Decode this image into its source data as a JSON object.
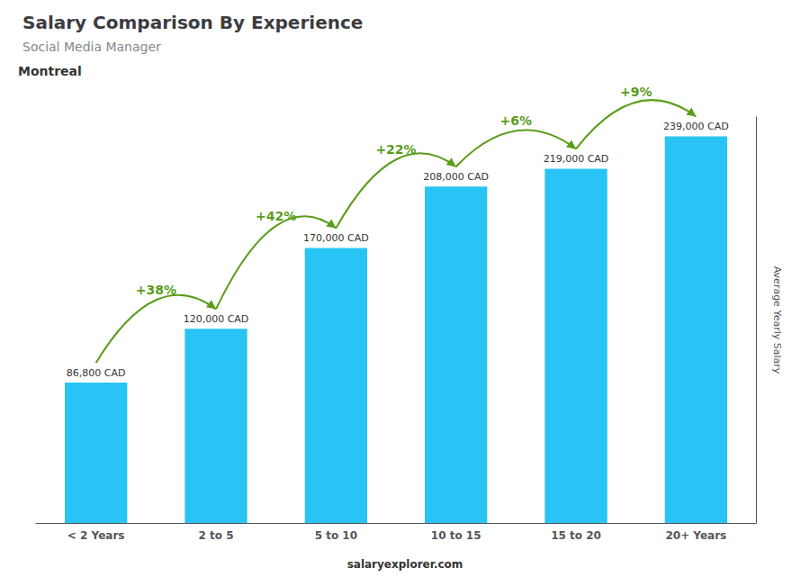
{
  "chart_data": {
    "type": "bar",
    "title": "Salary Comparison By Experience",
    "subtitle": "Social Media Manager",
    "city": "Montreal",
    "ylabel": "Average Yearly Salary",
    "footer": "salaryexplorer.com",
    "categories": [
      "< 2 Years",
      "2 to 5",
      "5 to 10",
      "10 to 15",
      "15 to 20",
      "20+ Years"
    ],
    "values": [
      86800,
      120000,
      170000,
      208000,
      219000,
      239000
    ],
    "value_labels": [
      "86,800 CAD",
      "120,000 CAD",
      "170,000 CAD",
      "208,000 CAD",
      "219,000 CAD",
      "239,000 CAD"
    ],
    "change_labels": [
      null,
      "+38%",
      "+42%",
      "+22%",
      "+6%",
      "+9%"
    ],
    "color": "#29c4f5",
    "ylim": [
      0,
      250950
    ],
    "data_labels": true,
    "tick_labels": "x",
    "grid": false
  }
}
